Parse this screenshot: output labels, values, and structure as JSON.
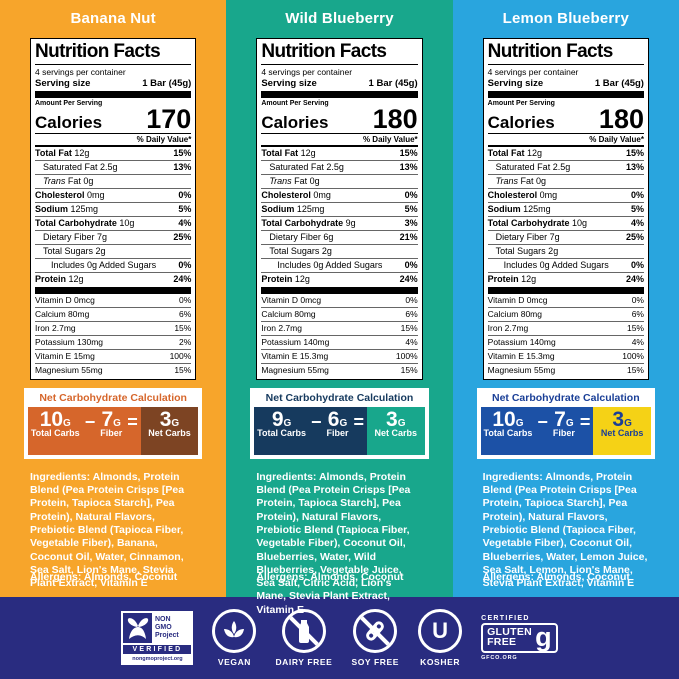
{
  "shared": {
    "nutrition_title": "Nutrition Facts",
    "servings_line": "4 servings per container",
    "serving_size_label": "Serving size",
    "serving_size_value": "1 Bar (45g)",
    "amount_label": "Amount Per Serving",
    "calories_label": "Calories",
    "daily_value_header": "% Daily Value*",
    "net_carb_title": "Net Carbohydrate Calculation",
    "g_unit": "G",
    "minus": "−",
    "equals": "=",
    "total_carbs_label": "Total Carbs",
    "fiber_label": "Fiber",
    "net_carbs_label": "Net Carbs",
    "ingredients_label": "Ingredients:",
    "allergens_label": "Allergens:",
    "allergens_value": " Almonds, Coconut"
  },
  "panels": [
    {
      "title": "Banana Nut",
      "colors": {
        "bg": "#F7A52B",
        "net_title": "#D6662B",
        "left_bg": "#D6662B",
        "right_bg": "#7D4423",
        "right_fg": "#FFFFFF"
      },
      "calories": "170",
      "nutrients": [
        {
          "b": "Total Fat",
          "t": " 12g",
          "dv": "15%",
          "ind": 0
        },
        {
          "t": "Saturated Fat 2.5g",
          "dv": "13%",
          "ind": 1
        },
        {
          "i": "Trans",
          "t": " Fat 0g",
          "dv": "",
          "ind": 1
        },
        {
          "b": "Cholesterol",
          "t": " 0mg",
          "dv": "0%",
          "ind": 0
        },
        {
          "b": "Sodium",
          "t": " 125mg",
          "dv": "5%",
          "ind": 0
        },
        {
          "b": "Total Carbohydrate",
          "t": " 10g",
          "dv": "4%",
          "ind": 0
        },
        {
          "t": "Dietary Fiber 7g",
          "dv": "25%",
          "ind": 1
        },
        {
          "t": "Total Sugars 2g",
          "dv": "",
          "ind": 1
        },
        {
          "t": "Includes 0g Added Sugars",
          "dv": "0%",
          "ind": 2
        },
        {
          "b": "Protein",
          "t": " 12g",
          "dv": "24%",
          "ind": 0
        }
      ],
      "vitamins": [
        {
          "t": "Vitamin D 0mcg",
          "dv": "0%"
        },
        {
          "t": "Calcium 80mg",
          "dv": "6%"
        },
        {
          "t": "Iron 2.7mg",
          "dv": "15%"
        },
        {
          "t": "Potassium 130mg",
          "dv": "2%"
        },
        {
          "t": "Vitamin E 15mg",
          "dv": "100%"
        },
        {
          "t": "Magnesium 55mg",
          "dv": "15%"
        }
      ],
      "net_carbs": {
        "total": "10",
        "fiber": "7",
        "net": "3"
      },
      "ingredients": " Almonds, Protein Blend (Pea Protein Crisps [Pea Protein, Tapioca Starch], Pea Protein), Natural Flavors, Prebiotic Blend (Tapioca Fiber, Vegetable Fiber), Banana, Coconut Oil, Water, Cinnamon, Sea Salt, Lion's Mane, Stevia Plant Extract, Vitamin E"
    },
    {
      "title": "Wild Blueberry",
      "colors": {
        "bg": "#18A78C",
        "net_title": "#163A5E",
        "left_bg": "#163A5E",
        "right_bg": "#18A78C",
        "right_fg": "#FFFFFF"
      },
      "calories": "180",
      "nutrients": [
        {
          "b": "Total Fat",
          "t": " 12g",
          "dv": "15%",
          "ind": 0
        },
        {
          "t": "Saturated Fat 2.5g",
          "dv": "13%",
          "ind": 1
        },
        {
          "i": "Trans",
          "t": " Fat 0g",
          "dv": "",
          "ind": 1
        },
        {
          "b": "Cholesterol",
          "t": " 0mg",
          "dv": "0%",
          "ind": 0
        },
        {
          "b": "Sodium",
          "t": " 125mg",
          "dv": "5%",
          "ind": 0
        },
        {
          "b": "Total Carbohydrate",
          "t": " 9g",
          "dv": "3%",
          "ind": 0
        },
        {
          "t": "Dietary Fiber 6g",
          "dv": "21%",
          "ind": 1
        },
        {
          "t": "Total Sugars 2g",
          "dv": "",
          "ind": 1
        },
        {
          "t": "Includes 0g Added Sugars",
          "dv": "0%",
          "ind": 2
        },
        {
          "b": "Protein",
          "t": " 12g",
          "dv": "24%",
          "ind": 0
        }
      ],
      "vitamins": [
        {
          "t": "Vitamin D 0mcg",
          "dv": "0%"
        },
        {
          "t": "Calcium 80mg",
          "dv": "6%"
        },
        {
          "t": "Iron 2.7mg",
          "dv": "15%"
        },
        {
          "t": "Potassium 140mg",
          "dv": "4%"
        },
        {
          "t": "Vitamin E 15.3mg",
          "dv": "100%"
        },
        {
          "t": "Magnesium 55mg",
          "dv": "15%"
        }
      ],
      "net_carbs": {
        "total": "9",
        "fiber": "6",
        "net": "3"
      },
      "ingredients": " Almonds, Protein Blend (Pea Protein Crisps [Pea Protein, Tapioca Starch], Pea Protein), Natural Flavors, Prebiotic Blend (Tapioca Fiber, Vegetable Fiber), Coconut Oil, Blueberries, Water, Wild Blueberries, Vegetable Juice, Sea Salt, Citric Acid, Lion's Mane, Stevia Plant Extract, Vitamin E"
    },
    {
      "title": "Lemon Blueberry",
      "colors": {
        "bg": "#29A5DE",
        "net_title": "#1A3F97",
        "left_bg": "#1C51A6",
        "right_bg": "#F5D216",
        "right_fg": "#1A3F97"
      },
      "calories": "180",
      "nutrients": [
        {
          "b": "Total Fat",
          "t": " 12g",
          "dv": "15%",
          "ind": 0
        },
        {
          "t": "Saturated Fat 2.5g",
          "dv": "13%",
          "ind": 1
        },
        {
          "i": "Trans",
          "t": " Fat 0g",
          "dv": "",
          "ind": 1
        },
        {
          "b": "Cholesterol",
          "t": " 0mg",
          "dv": "0%",
          "ind": 0
        },
        {
          "b": "Sodium",
          "t": " 125mg",
          "dv": "5%",
          "ind": 0
        },
        {
          "b": "Total Carbohydrate",
          "t": " 10g",
          "dv": "4%",
          "ind": 0
        },
        {
          "t": "Dietary Fiber 7g",
          "dv": "25%",
          "ind": 1
        },
        {
          "t": "Total Sugars 2g",
          "dv": "",
          "ind": 1
        },
        {
          "t": "Includes 0g Added Sugars",
          "dv": "0%",
          "ind": 2
        },
        {
          "b": "Protein",
          "t": " 12g",
          "dv": "24%",
          "ind": 0
        }
      ],
      "vitamins": [
        {
          "t": "Vitamin D 0mcg",
          "dv": "0%"
        },
        {
          "t": "Calcium 80mg",
          "dv": "6%"
        },
        {
          "t": "Iron 2.7mg",
          "dv": "15%"
        },
        {
          "t": "Potassium 140mg",
          "dv": "4%"
        },
        {
          "t": "Vitamin E 15.3mg",
          "dv": "100%"
        },
        {
          "t": "Magnesium 55mg",
          "dv": "15%"
        }
      ],
      "net_carbs": {
        "total": "10",
        "fiber": "7",
        "net": "3"
      },
      "ingredients": " Almonds, Protein Blend (Pea Protein Crisps [Pea Protein, Tapioca Starch], Pea Protein), Natural Flavors, Prebiotic Blend (Tapioca Fiber, Vegetable Fiber), Coconut Oil, Blueberries, Water, Lemon Juice, Sea Salt, Lemon, Lion's Mane, Stevia Plant Extract, Vitamin E"
    }
  ],
  "footer": {
    "background": "#292C80",
    "non_gmo": {
      "l1": "NON",
      "l2": "GMO",
      "l3": "Project",
      "verified": "VERIFIED",
      "url": "nongmoproject.org"
    },
    "vegan_label": "VEGAN",
    "dairy_label": "DAIRY FREE",
    "soy_label": "SOY FREE",
    "kosher_label": "KOSHER",
    "kosher_u": "U",
    "gluten": {
      "certified": "CERTIFIED",
      "line1": "GLUTEN",
      "line2": "FREE",
      "g": "g",
      "org": "GFCO.ORG"
    }
  }
}
